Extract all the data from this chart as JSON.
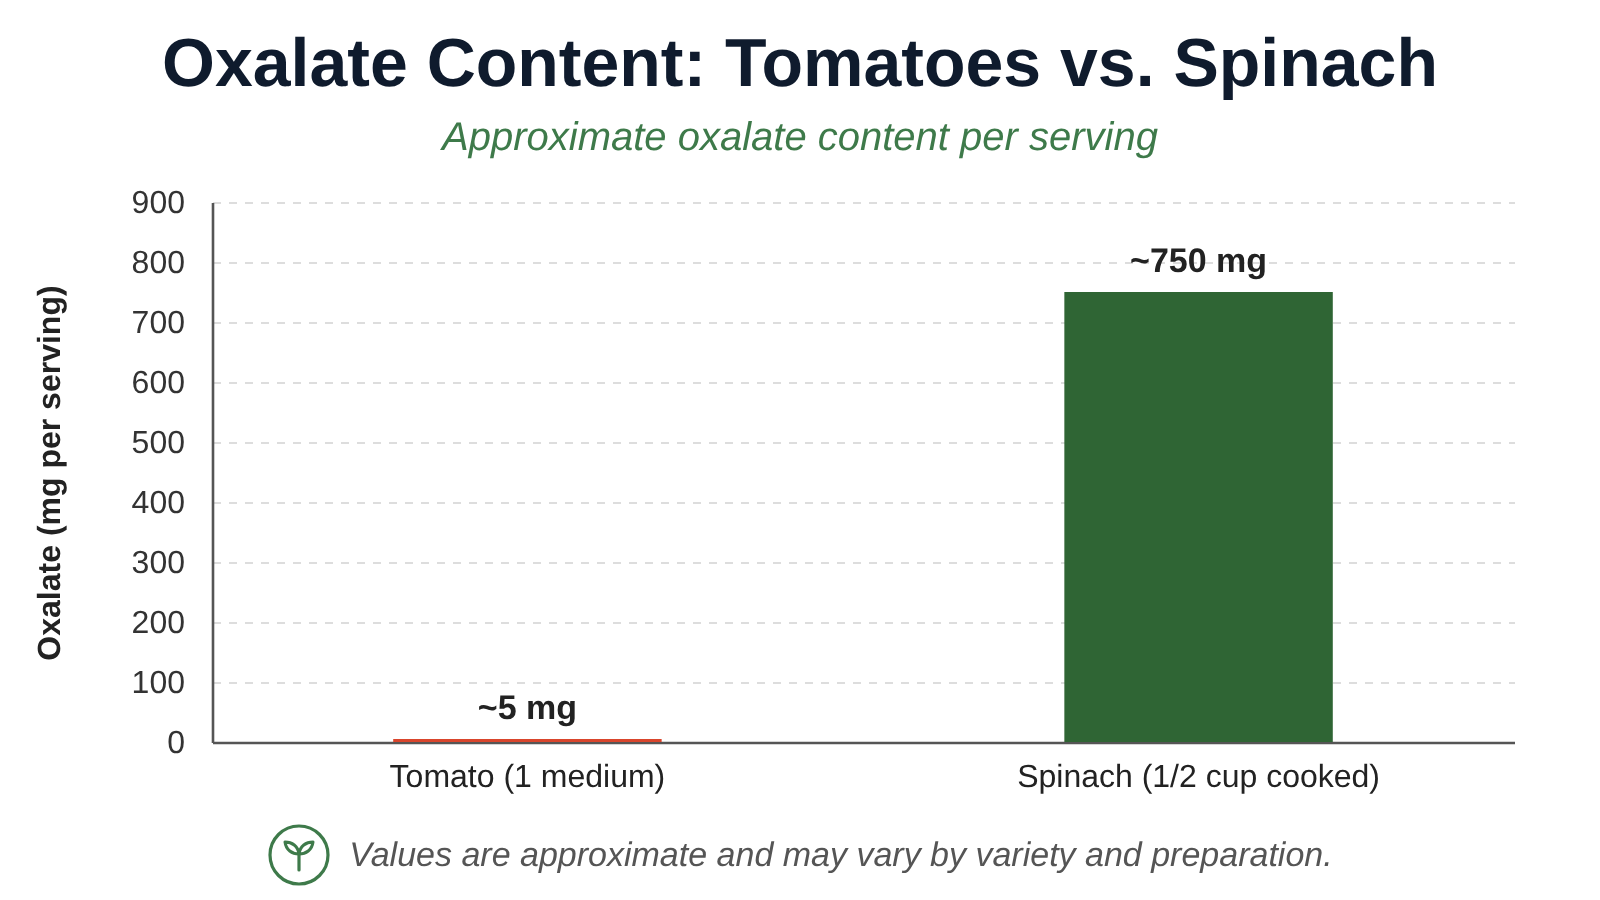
{
  "chart_data": {
    "type": "bar",
    "title": "Oxalate Content: Tomatoes vs. Spinach",
    "subtitle": "Approximate oxalate content per serving",
    "ylabel": "Oxalate (mg per serving)",
    "categories": [
      "Tomato (1 medium)",
      "Spinach (1/2 cup cooked)"
    ],
    "values": [
      5,
      750
    ],
    "colors": [
      "#d9452c",
      "#2f6534"
    ],
    "value_labels": [
      "~5 mg",
      "~750 mg"
    ],
    "ylim": [
      0,
      900
    ],
    "yticks": [
      0,
      100,
      200,
      300,
      400,
      500,
      600,
      700,
      800,
      900
    ],
    "grid": "y",
    "annotations": [
      "Values are approximate and may vary by variety and preparation."
    ]
  }
}
